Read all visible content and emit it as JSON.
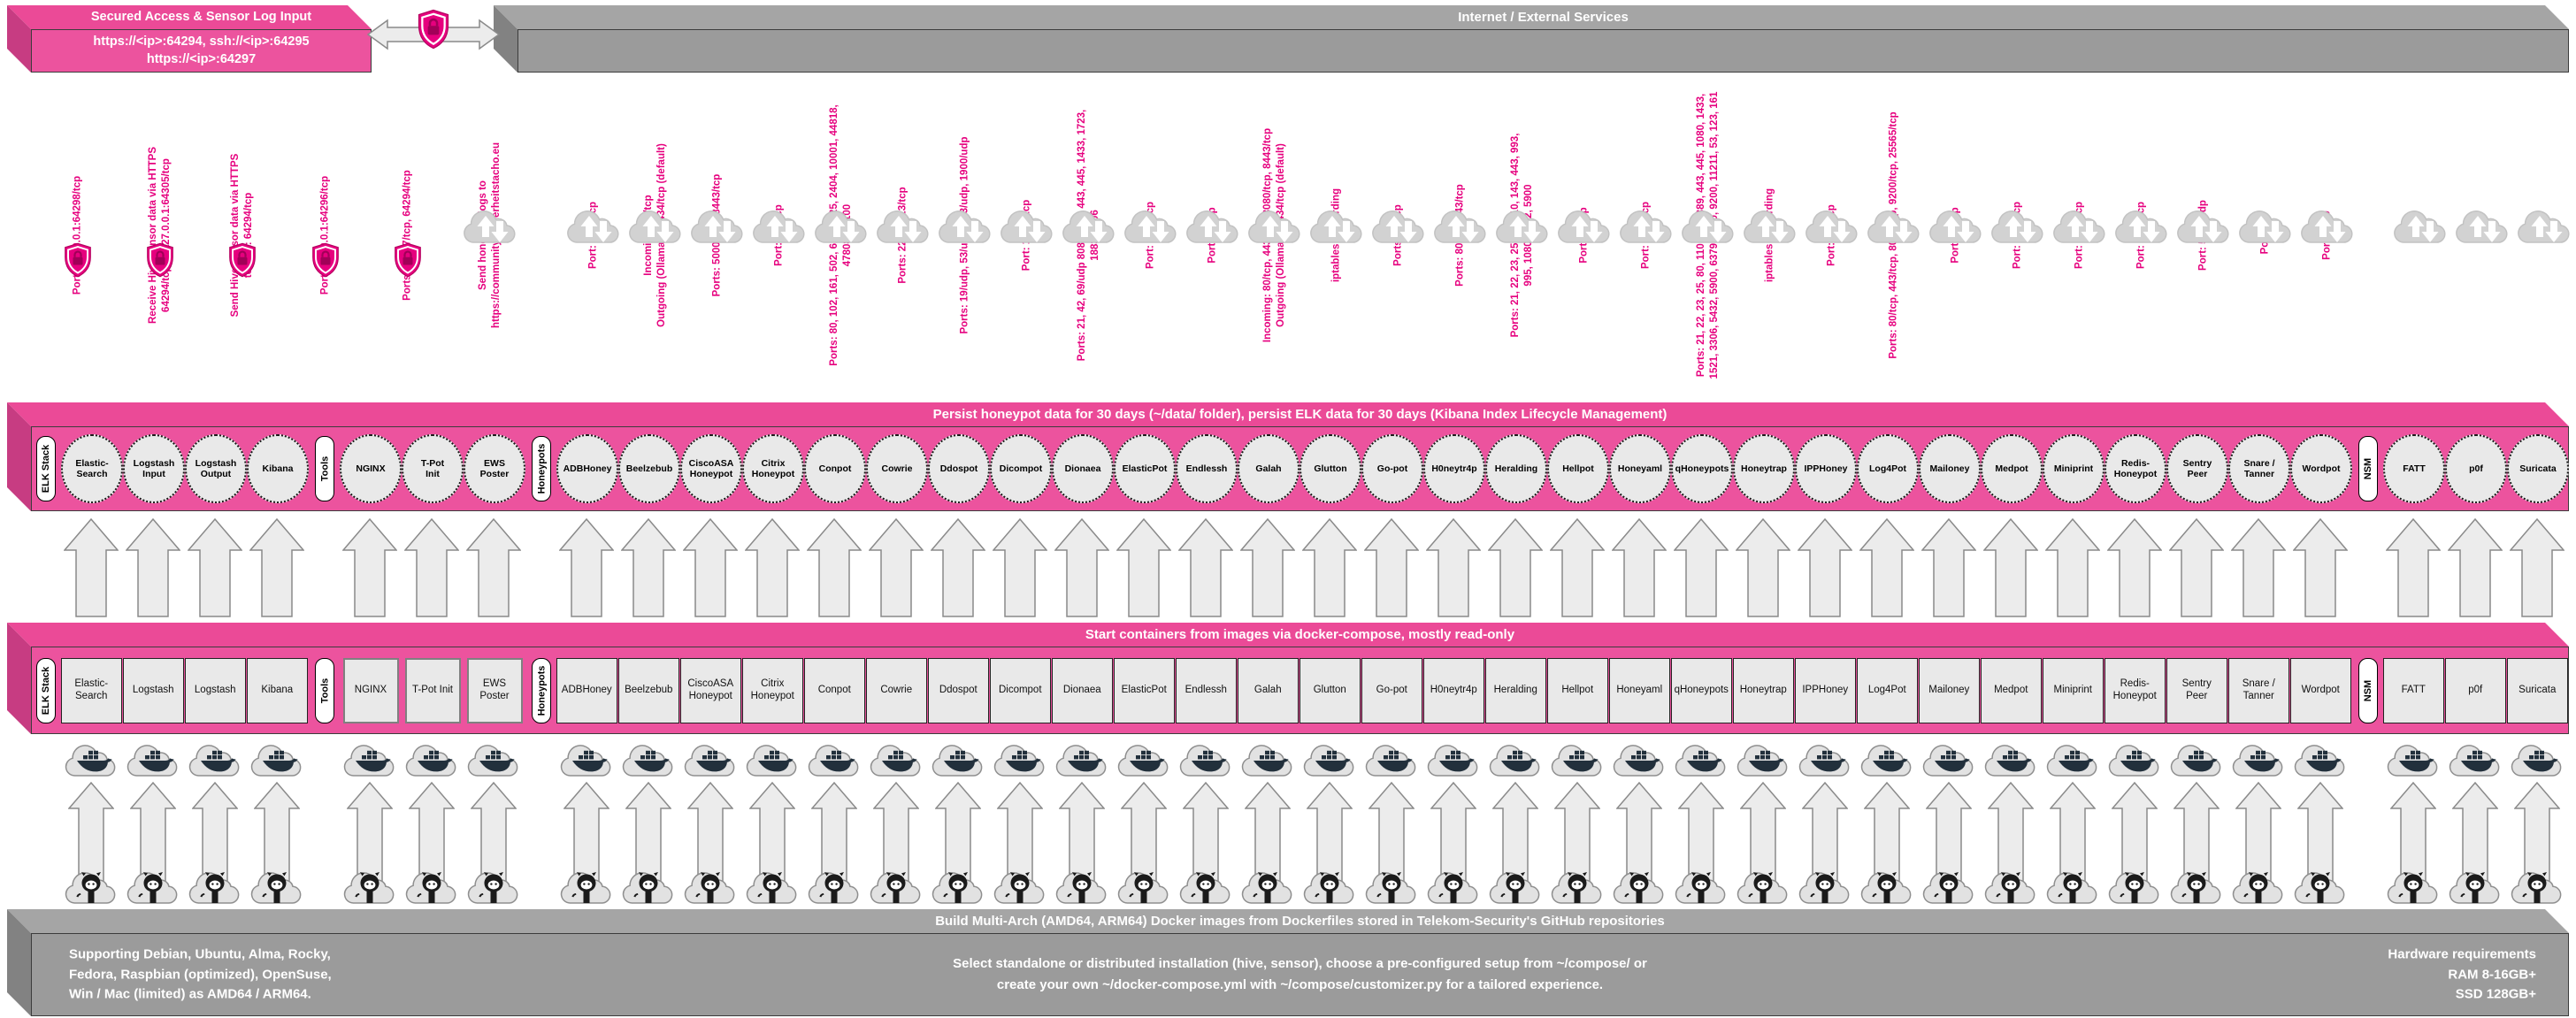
{
  "colors": {
    "magenta_accent": "#E6007E",
    "pink_bar": "#EC539E",
    "gray_bar": "#9B9B9B",
    "arrow_fill": "#ECECEC",
    "node_fill": "#E9E9E9"
  },
  "icons": {
    "shield_lock": "magenta shield with padlock",
    "cloud_updown": "cloud with up and down arrows",
    "docker_whale": "cloud with docker whale",
    "github_octocat": "cloud with github octocat"
  },
  "top": {
    "secured_box": {
      "title": "Secured Access & Sensor Log Input",
      "line1": "https://<ip>:64294, ssh://<ip>:64295",
      "line2": "https://<ip>:64297"
    },
    "internet_bar": {
      "title": "Internet / External Services"
    }
  },
  "persist_bar": {
    "title": "Persist honeypot data for 30 days (~/data/ folder), persist ELK data for 30 days (Kibana Index Lifecycle Management)"
  },
  "compose_bar": {
    "title": "Start containers from images via docker-compose, mostly read-only"
  },
  "build_bar": {
    "title": "Build Multi-Arch (AMD64, ARM64) Docker images from Dockerfiles stored in Telekom-Security's GitHub repositories",
    "left": "Supporting Debian, Ubuntu, Alma, Rocky,\nFedora, Raspbian (optimized), OpenSuse,\nWin / Mac (limited) as AMD64 / ARM64.",
    "center": "Select standalone or distributed installation (hive, sensor), choose a pre-configured setup from ~/compose/ or\ncreate your own ~/docker-compose.yml with ~/compose/customizer.py for a tailored experience.",
    "right": "Hardware requirements\nRAM 8-16GB+\nSSD 128GB+"
  },
  "arrows": [
    {
      "for": "secured-access-1",
      "label": [
        "Port: 127.0.0.1:64298/tcp"
      ],
      "style": "double",
      "shield": true,
      "cloud": false
    },
    {
      "for": "receive-hive-sensor",
      "label": [
        "Receive Hive Sensor data via HTTPS",
        "64294/tcp to 127.0.0.1:64305/tcp"
      ],
      "style": "down",
      "shield": true,
      "cloud": false
    },
    {
      "for": "send-hive-sensor",
      "label": [
        "Send Hive Sensor data via HTTPS",
        "to Port: 64294/tcp"
      ],
      "style": "up",
      "shield": true,
      "cloud": false
    },
    {
      "for": "secured-access-2",
      "label": [
        "Port: 127.0.0.1:64296/tcp"
      ],
      "style": "double",
      "shield": true,
      "cloud": false
    },
    {
      "for": "secured-access-3",
      "label": [
        "Ports: 64297/tcp, 64294/tcp"
      ],
      "style": "double",
      "shield": true,
      "cloud": false
    },
    {
      "for": "sicherheitstacho",
      "label": [
        "Send honeypot logs to",
        "https://community.sicherheitstacho.eu"
      ],
      "style": "up",
      "shield": false,
      "cloud": true
    },
    {
      "for": "adbhoney",
      "label": [
        "Port: 5555/tcp"
      ],
      "style": "double",
      "shield": false,
      "cloud": true
    },
    {
      "for": "beelzebub",
      "label": [
        "Incoming: 22/tcp",
        "Outgoing (Ollama): 11434/tcp (default)"
      ],
      "style": "double",
      "shield": false,
      "cloud": true
    },
    {
      "for": "ciscoasa",
      "label": [
        "Ports: 5000/udp, 8443/tcp"
      ],
      "style": "double",
      "shield": false,
      "cloud": true
    },
    {
      "for": "citrix",
      "label": [
        "Port: 443/tcp"
      ],
      "style": "double",
      "shield": false,
      "cloud": true
    },
    {
      "for": "conpot",
      "label": [
        "Ports: 80, 102, 161, 502, 623, 1025, 2404, 10001, 44818,",
        "47808, 50100"
      ],
      "style": "double",
      "shield": false,
      "cloud": true
    },
    {
      "for": "cowrie",
      "label": [
        "Ports: 22/tcp, 23/tcp"
      ],
      "style": "double",
      "shield": false,
      "cloud": true
    },
    {
      "for": "ddospot",
      "label": [
        "Ports: 19/udp, 53/udp, 123/udp, 1900/udp"
      ],
      "style": "double",
      "shield": false,
      "cloud": true
    },
    {
      "for": "dicompot",
      "label": [
        "Port: 11112/tcp"
      ],
      "style": "double",
      "shield": false,
      "cloud": true
    },
    {
      "for": "dionaea",
      "label": [
        "Ports: 21, 42, 69/udp 8081, 135, 443, 445, 1433, 1723,",
        "1883, 3306"
      ],
      "style": "double",
      "shield": false,
      "cloud": true
    },
    {
      "for": "elasticpot",
      "label": [
        "Port: 9200/tcp"
      ],
      "style": "double",
      "shield": false,
      "cloud": true
    },
    {
      "for": "endlessh",
      "label": [
        "Port: 22/tcp"
      ],
      "style": "double",
      "shield": false,
      "cloud": true
    },
    {
      "for": "galah",
      "label": [
        "Incoming: 80/tcp, 443/tcp, 8080/tcp, 8443/tcp",
        "Outgoing (Ollama): 11434/tcp (default)"
      ],
      "style": "double",
      "shield": false,
      "cloud": true
    },
    {
      "for": "glutton",
      "label": [
        "iptables forwarding"
      ],
      "style": "double",
      "shield": false,
      "cloud": true
    },
    {
      "for": "go-pot",
      "label": [
        "Ports: 80/tcp"
      ],
      "style": "double",
      "shield": false,
      "cloud": true
    },
    {
      "for": "h0neytr4p",
      "label": [
        "Ports: 80/tcp, 443/tcp"
      ],
      "style": "double",
      "shield": false,
      "cloud": true
    },
    {
      "for": "heralding",
      "label": [
        "Ports: 21, 22, 23, 25, 80, 110, 143, 443, 993,",
        "995, 1080, 5432, 5900"
      ],
      "style": "double",
      "shield": false,
      "cloud": true
    },
    {
      "for": "hellpot",
      "label": [
        "Port: 80/tcp"
      ],
      "style": "double",
      "shield": false,
      "cloud": true
    },
    {
      "for": "honeyaml",
      "label": [
        "Port: 3000/tcp"
      ],
      "style": "double",
      "shield": false,
      "cloud": true
    },
    {
      "for": "qhoneypots",
      "label": [
        "Ports: 21, 22, 23, 25, 80, 110, 143, 389, 443, 445, 1080, 1433,",
        "1521, 3306, 5432, 5900, 6379, 8080, 9200, 11211, 53, 123, 161"
      ],
      "style": "double",
      "shield": false,
      "cloud": true
    },
    {
      "for": "honeytrap",
      "label": [
        "iptables forwarding"
      ],
      "style": "double",
      "shield": false,
      "cloud": true
    },
    {
      "for": "ipphoney",
      "label": [
        "Port: 631/tcp"
      ],
      "style": "double",
      "shield": false,
      "cloud": true
    },
    {
      "for": "log4pot",
      "label": [
        "Ports: 80/tcp, 443/tcp, 8080/tcp, 9200/tcp, 25565/tcp"
      ],
      "style": "double",
      "shield": false,
      "cloud": true
    },
    {
      "for": "mailoney",
      "label": [
        "Port: 25/tcp"
      ],
      "style": "double",
      "shield": false,
      "cloud": true
    },
    {
      "for": "medpot",
      "label": [
        "Port: 2575/tcp"
      ],
      "style": "double",
      "shield": false,
      "cloud": true
    },
    {
      "for": "miniprint",
      "label": [
        "Port: 9100/tcp"
      ],
      "style": "double",
      "shield": false,
      "cloud": true
    },
    {
      "for": "redis-honeypot",
      "label": [
        "Port: 6379/tcp"
      ],
      "style": "double",
      "shield": false,
      "cloud": true
    },
    {
      "for": "sentrypeer",
      "label": [
        "Port: 5060/udp"
      ],
      "style": "double",
      "shield": false,
      "cloud": true
    },
    {
      "for": "snare-tanner",
      "label": [
        "Port: 80"
      ],
      "style": "double",
      "shield": false,
      "cloud": true
    },
    {
      "for": "wordpot",
      "label": [
        "Port: 8080"
      ],
      "style": "double",
      "shield": false,
      "cloud": true
    },
    {
      "for": "fatt",
      "label": [],
      "style": "down",
      "shield": false,
      "cloud": true
    },
    {
      "for": "p0f",
      "label": [],
      "style": "down",
      "shield": false,
      "cloud": true
    },
    {
      "for": "suricata",
      "label": [],
      "style": "down",
      "shield": false,
      "cloud": true
    }
  ],
  "groups": [
    {
      "label": "ELK Stack",
      "items": [
        {
          "name": "elasticsearch",
          "ellipse": [
            "Elastic-",
            "Search"
          ],
          "rect": [
            "Elastic-",
            "Search"
          ]
        },
        {
          "name": "logstash-input",
          "ellipse": [
            "Logstash",
            "Input"
          ],
          "rect": [
            "Logstash"
          ]
        },
        {
          "name": "logstash-output",
          "ellipse": [
            "Logstash",
            "Output"
          ],
          "rect": [
            "Logstash"
          ]
        },
        {
          "name": "kibana",
          "ellipse": [
            "Kibana"
          ],
          "rect": [
            "Kibana"
          ]
        }
      ]
    },
    {
      "label": "Tools",
      "items": [
        {
          "name": "nginx",
          "ellipse": [
            "NGINX"
          ],
          "rect": [
            "NGINX"
          ]
        },
        {
          "name": "tpot-init",
          "ellipse": [
            "T-Pot",
            "Init"
          ],
          "rect": [
            "T-Pot Init"
          ]
        },
        {
          "name": "ews-poster",
          "ellipse": [
            "EWS",
            "Poster"
          ],
          "rect": [
            "EWS",
            "Poster"
          ]
        }
      ]
    },
    {
      "label": "Honeypots",
      "items": [
        {
          "name": "adbhoney",
          "ellipse": [
            "ADBHoney"
          ],
          "rect": [
            "ADBHoney"
          ]
        },
        {
          "name": "beelzebub",
          "ellipse": [
            "Beelzebub"
          ],
          "rect": [
            "Beelzebub"
          ]
        },
        {
          "name": "ciscoasa-honeypot",
          "ellipse": [
            "CiscoASA",
            "Honeypot"
          ],
          "rect": [
            "CiscoASA",
            "Honeypot"
          ]
        },
        {
          "name": "citrix-honeypot",
          "ellipse": [
            "Citrix",
            "Honeypot"
          ],
          "rect": [
            "Citrix",
            "Honeypot"
          ]
        },
        {
          "name": "conpot",
          "ellipse": [
            "Conpot"
          ],
          "rect": [
            "Conpot"
          ]
        },
        {
          "name": "cowrie",
          "ellipse": [
            "Cowrie"
          ],
          "rect": [
            "Cowrie"
          ]
        },
        {
          "name": "ddospot",
          "ellipse": [
            "Ddospot"
          ],
          "rect": [
            "Ddospot"
          ]
        },
        {
          "name": "dicompot",
          "ellipse": [
            "Dicompot"
          ],
          "rect": [
            "Dicompot"
          ]
        },
        {
          "name": "dionaea",
          "ellipse": [
            "Dionaea"
          ],
          "rect": [
            "Dionaea"
          ]
        },
        {
          "name": "elasticpot",
          "ellipse": [
            "ElasticPot"
          ],
          "rect": [
            "ElasticPot"
          ]
        },
        {
          "name": "endlessh",
          "ellipse": [
            "Endlessh"
          ],
          "rect": [
            "Endlessh"
          ]
        },
        {
          "name": "galah",
          "ellipse": [
            "Galah"
          ],
          "rect": [
            "Galah"
          ]
        },
        {
          "name": "glutton",
          "ellipse": [
            "Glutton"
          ],
          "rect": [
            "Glutton"
          ]
        },
        {
          "name": "go-pot",
          "ellipse": [
            "Go-pot"
          ],
          "rect": [
            "Go-pot"
          ]
        },
        {
          "name": "h0neytr4p",
          "ellipse": [
            "H0neytr4p"
          ],
          "rect": [
            "H0neytr4p"
          ]
        },
        {
          "name": "heralding",
          "ellipse": [
            "Heralding"
          ],
          "rect": [
            "Heralding"
          ]
        },
        {
          "name": "hellpot",
          "ellipse": [
            "Hellpot"
          ],
          "rect": [
            "Hellpot"
          ]
        },
        {
          "name": "honeyaml",
          "ellipse": [
            "Honeyaml"
          ],
          "rect": [
            "Honeyaml"
          ]
        },
        {
          "name": "qhoneypots",
          "ellipse": [
            "qHoneypots"
          ],
          "rect": [
            "qHoneypots"
          ]
        },
        {
          "name": "honeytrap",
          "ellipse": [
            "Honeytrap"
          ],
          "rect": [
            "Honeytrap"
          ]
        },
        {
          "name": "ipphoney",
          "ellipse": [
            "IPPHoney"
          ],
          "rect": [
            "IPPHoney"
          ]
        },
        {
          "name": "log4pot",
          "ellipse": [
            "Log4Pot"
          ],
          "rect": [
            "Log4Pot"
          ]
        },
        {
          "name": "mailoney",
          "ellipse": [
            "Mailoney"
          ],
          "rect": [
            "Mailoney"
          ]
        },
        {
          "name": "medpot",
          "ellipse": [
            "Medpot"
          ],
          "rect": [
            "Medpot"
          ]
        },
        {
          "name": "miniprint",
          "ellipse": [
            "Miniprint"
          ],
          "rect": [
            "Miniprint"
          ]
        },
        {
          "name": "redis-honeypot",
          "ellipse": [
            "Redis-",
            "Honeypot"
          ],
          "rect": [
            "Redis-",
            "Honeypot"
          ]
        },
        {
          "name": "sentry-peer",
          "ellipse": [
            "Sentry",
            "Peer"
          ],
          "rect": [
            "Sentry",
            "Peer"
          ]
        },
        {
          "name": "snare-tanner",
          "ellipse": [
            "Snare /",
            "Tanner"
          ],
          "rect": [
            "Snare /",
            "Tanner"
          ]
        },
        {
          "name": "wordpot",
          "ellipse": [
            "Wordpot"
          ],
          "rect": [
            "Wordpot"
          ]
        }
      ]
    },
    {
      "label": "NSM",
      "items": [
        {
          "name": "fatt",
          "ellipse": [
            "FATT"
          ],
          "rect": [
            "FATT"
          ]
        },
        {
          "name": "p0f",
          "ellipse": [
            "p0f"
          ],
          "rect": [
            "p0f"
          ]
        },
        {
          "name": "suricata",
          "ellipse": [
            "Suricata"
          ],
          "rect": [
            "Suricata"
          ]
        }
      ]
    }
  ]
}
